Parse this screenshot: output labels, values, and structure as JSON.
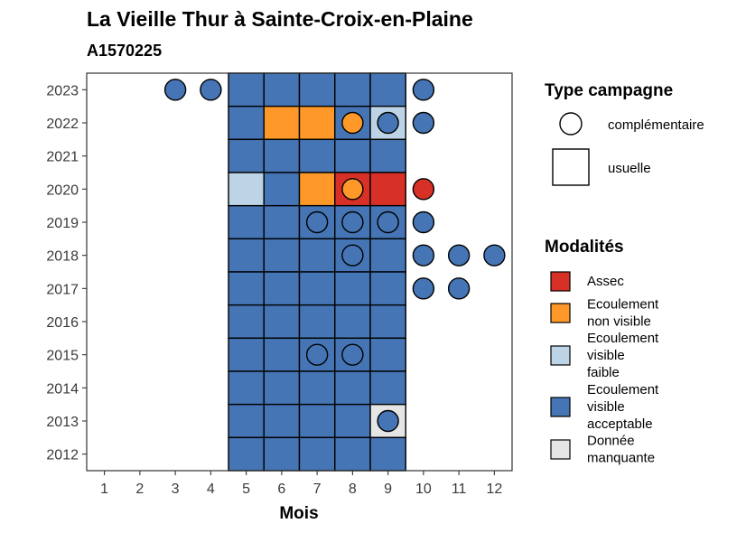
{
  "chart_data": {
    "type": "heatmap",
    "title": "La Vieille Thur à Sainte-Croix-en-Plaine",
    "subtitle": "A1570225",
    "xlabel": "Mois",
    "ylabel": "",
    "x_ticks": [
      1,
      2,
      3,
      4,
      5,
      6,
      7,
      8,
      9,
      10,
      11,
      12
    ],
    "y_ticks": [
      2012,
      2013,
      2014,
      2015,
      2016,
      2017,
      2018,
      2019,
      2020,
      2021,
      2022,
      2023
    ],
    "xlim": [
      0.5,
      12.5
    ],
    "ylim": [
      2011.5,
      2023.5
    ],
    "grid": false,
    "colors": {
      "Assec": "#d73027",
      "Ecoulement non visible": "#fe9929",
      "Ecoulement visible faible": "#bcd4e6",
      "Ecoulement visible acceptable": "#4575b4",
      "Donnée manquante": "#e5e5e5"
    },
    "usuelle": [
      {
        "year": 2023,
        "months": [
          5,
          6,
          7,
          8,
          9
        ],
        "value": [
          "Ecoulement visible acceptable",
          "Ecoulement visible acceptable",
          "Ecoulement visible acceptable",
          "Ecoulement visible acceptable",
          "Ecoulement visible acceptable"
        ]
      },
      {
        "year": 2022,
        "months": [
          5,
          6,
          7,
          8,
          9
        ],
        "value": [
          "Ecoulement visible acceptable",
          "Ecoulement non visible",
          "Ecoulement non visible",
          "Ecoulement visible acceptable",
          "Ecoulement visible faible"
        ]
      },
      {
        "year": 2021,
        "months": [
          5,
          6,
          7,
          8,
          9
        ],
        "value": [
          "Ecoulement visible acceptable",
          "Ecoulement visible acceptable",
          "Ecoulement visible acceptable",
          "Ecoulement visible acceptable",
          "Ecoulement visible acceptable"
        ]
      },
      {
        "year": 2020,
        "months": [
          5,
          6,
          7,
          8,
          9
        ],
        "value": [
          "Ecoulement visible faible",
          "Ecoulement visible acceptable",
          "Ecoulement non visible",
          "Assec",
          "Assec"
        ]
      },
      {
        "year": 2019,
        "months": [
          5,
          6,
          7,
          8,
          9
        ],
        "value": [
          "Ecoulement visible acceptable",
          "Ecoulement visible acceptable",
          "Ecoulement visible acceptable",
          "Ecoulement visible acceptable",
          "Ecoulement visible acceptable"
        ]
      },
      {
        "year": 2018,
        "months": [
          5,
          6,
          7,
          8,
          9
        ],
        "value": [
          "Ecoulement visible acceptable",
          "Ecoulement visible acceptable",
          "Ecoulement visible acceptable",
          "Ecoulement visible acceptable",
          "Ecoulement visible acceptable"
        ]
      },
      {
        "year": 2017,
        "months": [
          5,
          6,
          7,
          8,
          9
        ],
        "value": [
          "Ecoulement visible acceptable",
          "Ecoulement visible acceptable",
          "Ecoulement visible acceptable",
          "Ecoulement visible acceptable",
          "Ecoulement visible acceptable"
        ]
      },
      {
        "year": 2016,
        "months": [
          5,
          6,
          7,
          8,
          9
        ],
        "value": [
          "Ecoulement visible acceptable",
          "Ecoulement visible acceptable",
          "Ecoulement visible acceptable",
          "Ecoulement visible acceptable",
          "Ecoulement visible acceptable"
        ]
      },
      {
        "year": 2015,
        "months": [
          5,
          6,
          7,
          8,
          9
        ],
        "value": [
          "Ecoulement visible acceptable",
          "Ecoulement visible acceptable",
          "Ecoulement visible acceptable",
          "Ecoulement visible acceptable",
          "Ecoulement visible acceptable"
        ]
      },
      {
        "year": 2014,
        "months": [
          5,
          6,
          7,
          8,
          9
        ],
        "value": [
          "Ecoulement visible acceptable",
          "Ecoulement visible acceptable",
          "Ecoulement visible acceptable",
          "Ecoulement visible acceptable",
          "Ecoulement visible acceptable"
        ]
      },
      {
        "year": 2013,
        "months": [
          5,
          6,
          7,
          8,
          9
        ],
        "value": [
          "Ecoulement visible acceptable",
          "Ecoulement visible acceptable",
          "Ecoulement visible acceptable",
          "Ecoulement visible acceptable",
          "Donnée manquante"
        ]
      },
      {
        "year": 2012,
        "months": [
          5,
          6,
          7,
          8,
          9
        ],
        "value": [
          "Ecoulement visible acceptable",
          "Ecoulement visible acceptable",
          "Ecoulement visible acceptable",
          "Ecoulement visible acceptable",
          "Ecoulement visible acceptable"
        ]
      }
    ],
    "complementaire": [
      {
        "year": 2023,
        "month": 3,
        "value": "Ecoulement visible acceptable"
      },
      {
        "year": 2023,
        "month": 4,
        "value": "Ecoulement visible acceptable"
      },
      {
        "year": 2023,
        "month": 10,
        "value": "Ecoulement visible acceptable"
      },
      {
        "year": 2022,
        "month": 8,
        "value": "Ecoulement non visible"
      },
      {
        "year": 2022,
        "month": 9,
        "value": "Ecoulement visible acceptable"
      },
      {
        "year": 2022,
        "month": 10,
        "value": "Ecoulement visible acceptable"
      },
      {
        "year": 2020,
        "month": 8,
        "value": "Ecoulement non visible"
      },
      {
        "year": 2020,
        "month": 10,
        "value": "Assec"
      },
      {
        "year": 2019,
        "month": 7,
        "value": "Ecoulement visible acceptable"
      },
      {
        "year": 2019,
        "month": 8,
        "value": "Ecoulement visible acceptable"
      },
      {
        "year": 2019,
        "month": 9,
        "value": "Ecoulement visible acceptable"
      },
      {
        "year": 2019,
        "month": 10,
        "value": "Ecoulement visible acceptable"
      },
      {
        "year": 2018,
        "month": 8,
        "value": "Ecoulement visible acceptable"
      },
      {
        "year": 2018,
        "month": 10,
        "value": "Ecoulement visible acceptable"
      },
      {
        "year": 2018,
        "month": 11,
        "value": "Ecoulement visible acceptable"
      },
      {
        "year": 2018,
        "month": 12,
        "value": "Ecoulement visible acceptable"
      },
      {
        "year": 2017,
        "month": 10,
        "value": "Ecoulement visible acceptable"
      },
      {
        "year": 2017,
        "month": 11,
        "value": "Ecoulement visible acceptable"
      },
      {
        "year": 2015,
        "month": 7,
        "value": "Ecoulement visible acceptable"
      },
      {
        "year": 2015,
        "month": 8,
        "value": "Ecoulement visible acceptable"
      },
      {
        "year": 2013,
        "month": 9,
        "value": "Ecoulement visible acceptable"
      }
    ],
    "legend": {
      "placement": "right",
      "type_title": "Type campagne",
      "type_entries": [
        "complémentaire",
        "usuelle"
      ],
      "modalites_title": "Modalités",
      "modalites_entries": [
        {
          "key": "Assec",
          "lines": [
            "Assec"
          ]
        },
        {
          "key": "Ecoulement non visible",
          "lines": [
            "Ecoulement",
            "non visible"
          ]
        },
        {
          "key": "Ecoulement visible faible",
          "lines": [
            "Ecoulement",
            "visible",
            "faible"
          ]
        },
        {
          "key": "Ecoulement visible acceptable",
          "lines": [
            "Ecoulement",
            "visible",
            "acceptable"
          ]
        },
        {
          "key": "Donnée manquante",
          "lines": [
            "Donnée",
            "manquante"
          ]
        }
      ]
    }
  }
}
